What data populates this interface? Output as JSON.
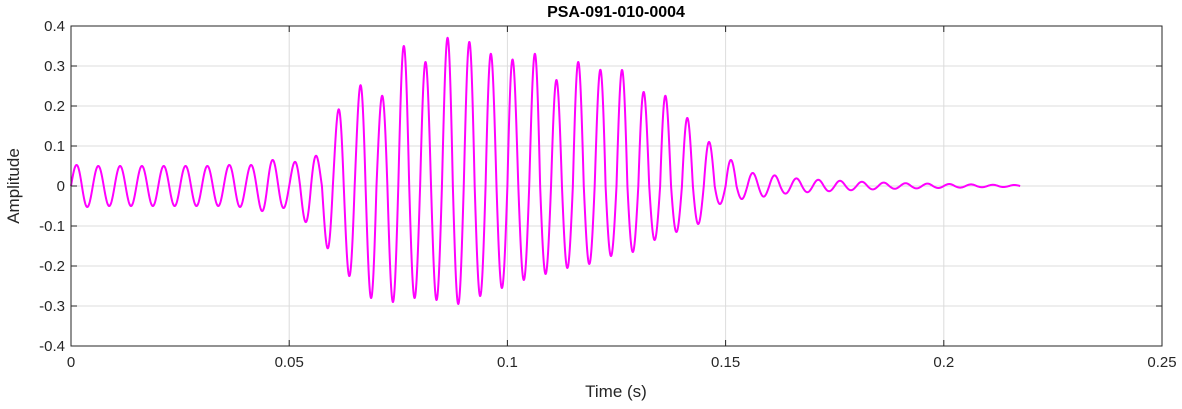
{
  "chart_data": {
    "type": "line",
    "title": "PSA-091-010-0004",
    "xlabel": "Time (s)",
    "ylabel": "Amplitude",
    "xlim": [
      0,
      0.25
    ],
    "ylim": [
      -0.4,
      0.4
    ],
    "x_ticks": [
      0,
      0.05,
      0.1,
      0.15,
      0.2,
      0.25
    ],
    "x_tick_labels": [
      "0",
      "0.05",
      "0.1",
      "0.15",
      "0.2",
      "0.25"
    ],
    "y_ticks": [
      0.4,
      0.3,
      0.2,
      0.1,
      0,
      -0.1,
      -0.2,
      -0.3,
      -0.4
    ],
    "y_tick_labels": [
      "0.4",
      "0.3",
      "0.2",
      "0.1",
      "0",
      "-0.1",
      "-0.2",
      "-0.3",
      "-0.4"
    ],
    "grid": true,
    "legend": "none",
    "series": [
      {
        "color": "#ff00ff",
        "x": [
          0,
          0.0025,
          0.005,
          0.0075,
          0.01,
          0.0125,
          0.015,
          0.0175,
          0.02,
          0.0225,
          0.025,
          0.0275,
          0.03,
          0.0325,
          0.035,
          0.0375,
          0.04,
          0.0425,
          0.045,
          0.0475,
          0.05,
          0.0525,
          0.055,
          0.0575,
          0.06,
          0.0625,
          0.065,
          0.0675,
          0.07,
          0.0725,
          0.075,
          0.0775,
          0.08,
          0.0825,
          0.085,
          0.0875,
          0.09,
          0.0925,
          0.095,
          0.0975,
          0.1,
          0.1025,
          0.105,
          0.1075,
          0.11,
          0.1125,
          0.115,
          0.1175,
          0.12,
          0.1225,
          0.125,
          0.1275,
          0.13,
          0.1325,
          0.135,
          0.1375,
          0.14,
          0.1425,
          0.145,
          0.1475,
          0.15,
          0.1525,
          0.155,
          0.1575,
          0.16,
          0.1625,
          0.165,
          0.1675,
          0.17,
          0.1725,
          0.175,
          0.1775,
          0.18,
          0.1825,
          0.185,
          0.1875,
          0.19,
          0.1925,
          0.195,
          0.1975,
          0.2,
          0.2025,
          0.205,
          0.2075,
          0.21,
          0.2125,
          0.215,
          0.2175
        ],
        "upper": [
          0.05,
          0.055,
          0.05,
          0.05,
          0.05,
          0.05,
          0.05,
          0.05,
          0.05,
          0.05,
          0.05,
          0.05,
          0.05,
          0.05,
          0.05,
          0.055,
          0.05,
          0.055,
          0.07,
          0.06,
          0.05,
          0.07,
          0.09,
          0.06,
          0.15,
          0.23,
          0.2,
          0.3,
          0.2,
          0.25,
          0.34,
          0.36,
          0.32,
          0.3,
          0.34,
          0.4,
          0.34,
          0.38,
          0.36,
          0.3,
          0.36,
          0.27,
          0.3,
          0.36,
          0.27,
          0.26,
          0.32,
          0.3,
          0.26,
          0.32,
          0.28,
          0.3,
          0.25,
          0.22,
          0.25,
          0.2,
          0.18,
          0.16,
          0.12,
          0.1,
          0.07,
          0.06,
          0.035,
          0.03,
          0.028,
          0.025,
          0.02,
          0.018,
          0.016,
          0.015,
          0.014,
          0.012,
          0.011,
          0.01,
          0.009,
          0.008,
          0.007,
          0.007,
          0.006,
          0.006,
          0.005,
          0.005,
          0.004,
          0.004,
          0.003,
          0.003,
          0.003,
          0.002
        ],
        "lower": [
          -0.05,
          -0.055,
          -0.05,
          -0.05,
          -0.05,
          -0.05,
          -0.05,
          -0.05,
          -0.05,
          -0.05,
          -0.05,
          -0.05,
          -0.05,
          -0.05,
          -0.05,
          -0.055,
          -0.05,
          -0.055,
          -0.07,
          -0.06,
          -0.05,
          -0.08,
          -0.1,
          -0.13,
          -0.18,
          -0.21,
          -0.24,
          -0.27,
          -0.29,
          -0.28,
          -0.3,
          -0.29,
          -0.27,
          -0.28,
          -0.29,
          -0.3,
          -0.29,
          -0.27,
          -0.28,
          -0.26,
          -0.25,
          -0.23,
          -0.24,
          -0.22,
          -0.22,
          -0.21,
          -0.2,
          -0.19,
          -0.2,
          -0.18,
          -0.17,
          -0.17,
          -0.16,
          -0.14,
          -0.13,
          -0.12,
          -0.11,
          -0.1,
          -0.09,
          -0.05,
          -0.04,
          -0.035,
          -0.03,
          -0.028,
          -0.025,
          -0.02,
          -0.018,
          -0.016,
          -0.015,
          -0.014,
          -0.012,
          -0.011,
          -0.01,
          -0.009,
          -0.008,
          -0.007,
          -0.007,
          -0.006,
          -0.006,
          -0.005,
          -0.005,
          -0.004,
          -0.004,
          -0.003,
          -0.003,
          -0.003,
          -0.002,
          -0.002
        ]
      }
    ]
  }
}
